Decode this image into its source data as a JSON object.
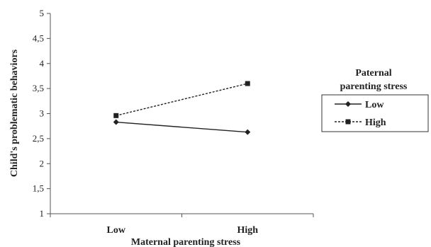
{
  "chart_data": {
    "type": "line",
    "categories": [
      "Low",
      "High"
    ],
    "xlabel": "Maternal parenting stress",
    "ylabel": "Child's problematic behaviors",
    "ylim": [
      1,
      5
    ],
    "yticks": [
      "1",
      "1,5",
      "2",
      "2,5",
      "3",
      "3,5",
      "4",
      "4,5",
      "5"
    ],
    "grid": false,
    "legend": {
      "title_lines": [
        "Paternal",
        "parenting stress"
      ],
      "placement": "right"
    },
    "series": [
      {
        "name": "Low",
        "values": [
          2.83,
          2.63
        ],
        "marker": "diamond",
        "line": "solid",
        "color": "#222222"
      },
      {
        "name": "High",
        "values": [
          2.96,
          3.6
        ],
        "marker": "square",
        "line": "dashed",
        "color": "#222222"
      }
    ]
  }
}
